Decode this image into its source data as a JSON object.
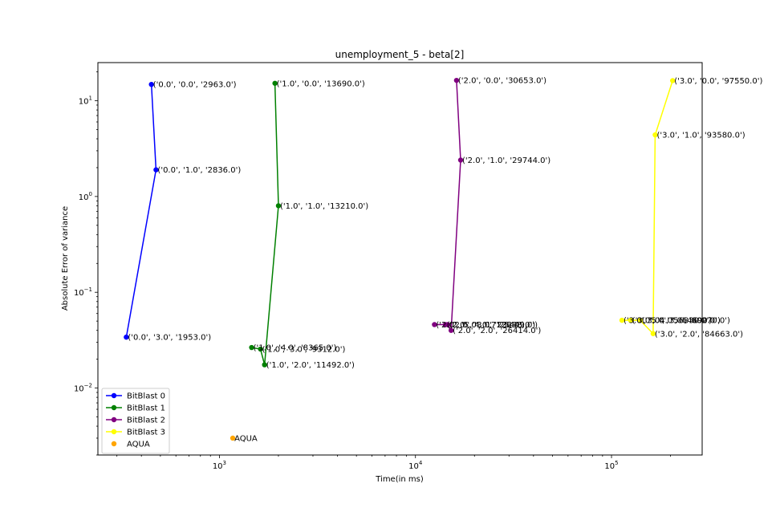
{
  "chart_data": {
    "type": "line",
    "title": "unemployment_5 - beta[2]",
    "xlabel": "Time(in ms)",
    "ylabel": "Absolute Error of variance",
    "xscale": "log",
    "yscale": "log",
    "xlim": [
      240,
      290000
    ],
    "ylim": [
      0.002,
      25
    ],
    "x_ticks": [
      {
        "value": 1000,
        "label": "10^3"
      },
      {
        "value": 10000,
        "label": "10^4"
      },
      {
        "value": 100000,
        "label": "10^5"
      }
    ],
    "y_ticks": [
      {
        "value": 0.01,
        "label": "10^-2"
      },
      {
        "value": 0.1,
        "label": "10^-1"
      },
      {
        "value": 1,
        "label": "10^0"
      },
      {
        "value": 10,
        "label": "10^1"
      }
    ],
    "legend_position": "lower-left",
    "series": [
      {
        "name": "BitBlast 0",
        "color": "#0000ff",
        "kind": "line",
        "points": [
          {
            "x": 450,
            "y": 14.8,
            "label": "('0.0', '0.0', '2963.0')"
          },
          {
            "x": 475,
            "y": 1.9,
            "label": "('0.0', '1.0', '2836.0')"
          },
          {
            "x": 335,
            "y": 0.034,
            "label": "('0.0', '3.0', '1953.0')"
          }
        ]
      },
      {
        "name": "BitBlast 1",
        "color": "#008000",
        "kind": "line",
        "points": [
          {
            "x": 1920,
            "y": 15.2,
            "label": "('1.0', '0.0', '13690.0')"
          },
          {
            "x": 2000,
            "y": 0.8,
            "label": "('1.0', '1.0', '13210.0')"
          },
          {
            "x": 1700,
            "y": 0.0175,
            "label": "('1.0', '2.0', '11492.0')"
          },
          {
            "x": 1620,
            "y": 0.0255,
            "label": "('1.0', '3.0', '9312.0')"
          },
          {
            "x": 1460,
            "y": 0.0265,
            "label": "('1.0', '4.0', '8365.0')"
          }
        ]
      },
      {
        "name": "BitBlast 2",
        "color": "#800080",
        "kind": "line",
        "points": [
          {
            "x": 16200,
            "y": 16.3,
            "label": "('2.0', '0.0', '30653.0')"
          },
          {
            "x": 17000,
            "y": 2.4,
            "label": "('2.0', '1.0', '29744.0')"
          },
          {
            "x": 15200,
            "y": 0.04,
            "label": "('2.0', '2.0', '26414.0')"
          },
          {
            "x": 14600,
            "y": 0.046,
            "label": "('2.0', '3.0', '25449.0')"
          },
          {
            "x": 14200,
            "y": 0.046,
            "label": "('2.0', '4.0', '23298.0')"
          },
          {
            "x": 12500,
            "y": 0.046,
            "label": "('2.0', '5.0', '17126.0')"
          }
        ]
      },
      {
        "name": "BitBlast 3",
        "color": "#ffff00",
        "kind": "line",
        "points": [
          {
            "x": 205000,
            "y": 16.2,
            "label": "('3.0', '0.0', '97550.0')"
          },
          {
            "x": 167000,
            "y": 4.4,
            "label": "('3.0', '1.0', '93580.0')"
          },
          {
            "x": 163000,
            "y": 0.037,
            "label": "('3.0', '2.0', '84663.0')"
          },
          {
            "x": 140000,
            "y": 0.051,
            "label": "('3.0', '3.0', '80270.0')"
          },
          {
            "x": 125000,
            "y": 0.051,
            "label": "('3.0', '4.0', '64690.0')"
          },
          {
            "x": 113000,
            "y": 0.051,
            "label": "('3.0', '5.0', '56830.0')"
          }
        ]
      },
      {
        "name": "AQUA",
        "color": "#ffa500",
        "kind": "scatter",
        "points": [
          {
            "x": 1170,
            "y": 0.003,
            "label": "AQUA"
          }
        ]
      }
    ]
  }
}
